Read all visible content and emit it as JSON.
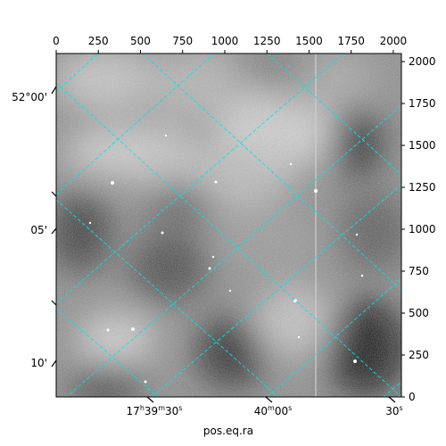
{
  "chart_data": {
    "type": "image",
    "xlabel": "pos.eq.ra",
    "pixel_axes": {
      "x_ticks": [
        "0",
        "250",
        "500",
        "750",
        "1000",
        "1250",
        "1500",
        "1750",
        "2000"
      ],
      "y_ticks": [
        "0",
        "250",
        "500",
        "750",
        "1000",
        "1250",
        "1500",
        "1750",
        "2000"
      ],
      "x_range": [
        0,
        2048
      ],
      "y_range": [
        0,
        2048
      ]
    },
    "world_axes": {
      "ra_ticks": [
        {
          "pre": "17",
          "h": "h",
          "mid": "39",
          "m": "m",
          "post": "30",
          "s": "s"
        },
        {
          "pre": "40",
          "h": "",
          "mid": "",
          "m": "m",
          "post": "00",
          "s": "s"
        },
        {
          "pre": "30",
          "h": "",
          "mid": "",
          "m": "",
          "post": "",
          "s": "s"
        }
      ],
      "dec_ticks": [
        "52°00'",
        "05'",
        "10'"
      ]
    },
    "grid": true,
    "grid_color": "#00e5e5",
    "colormap": "gray"
  }
}
